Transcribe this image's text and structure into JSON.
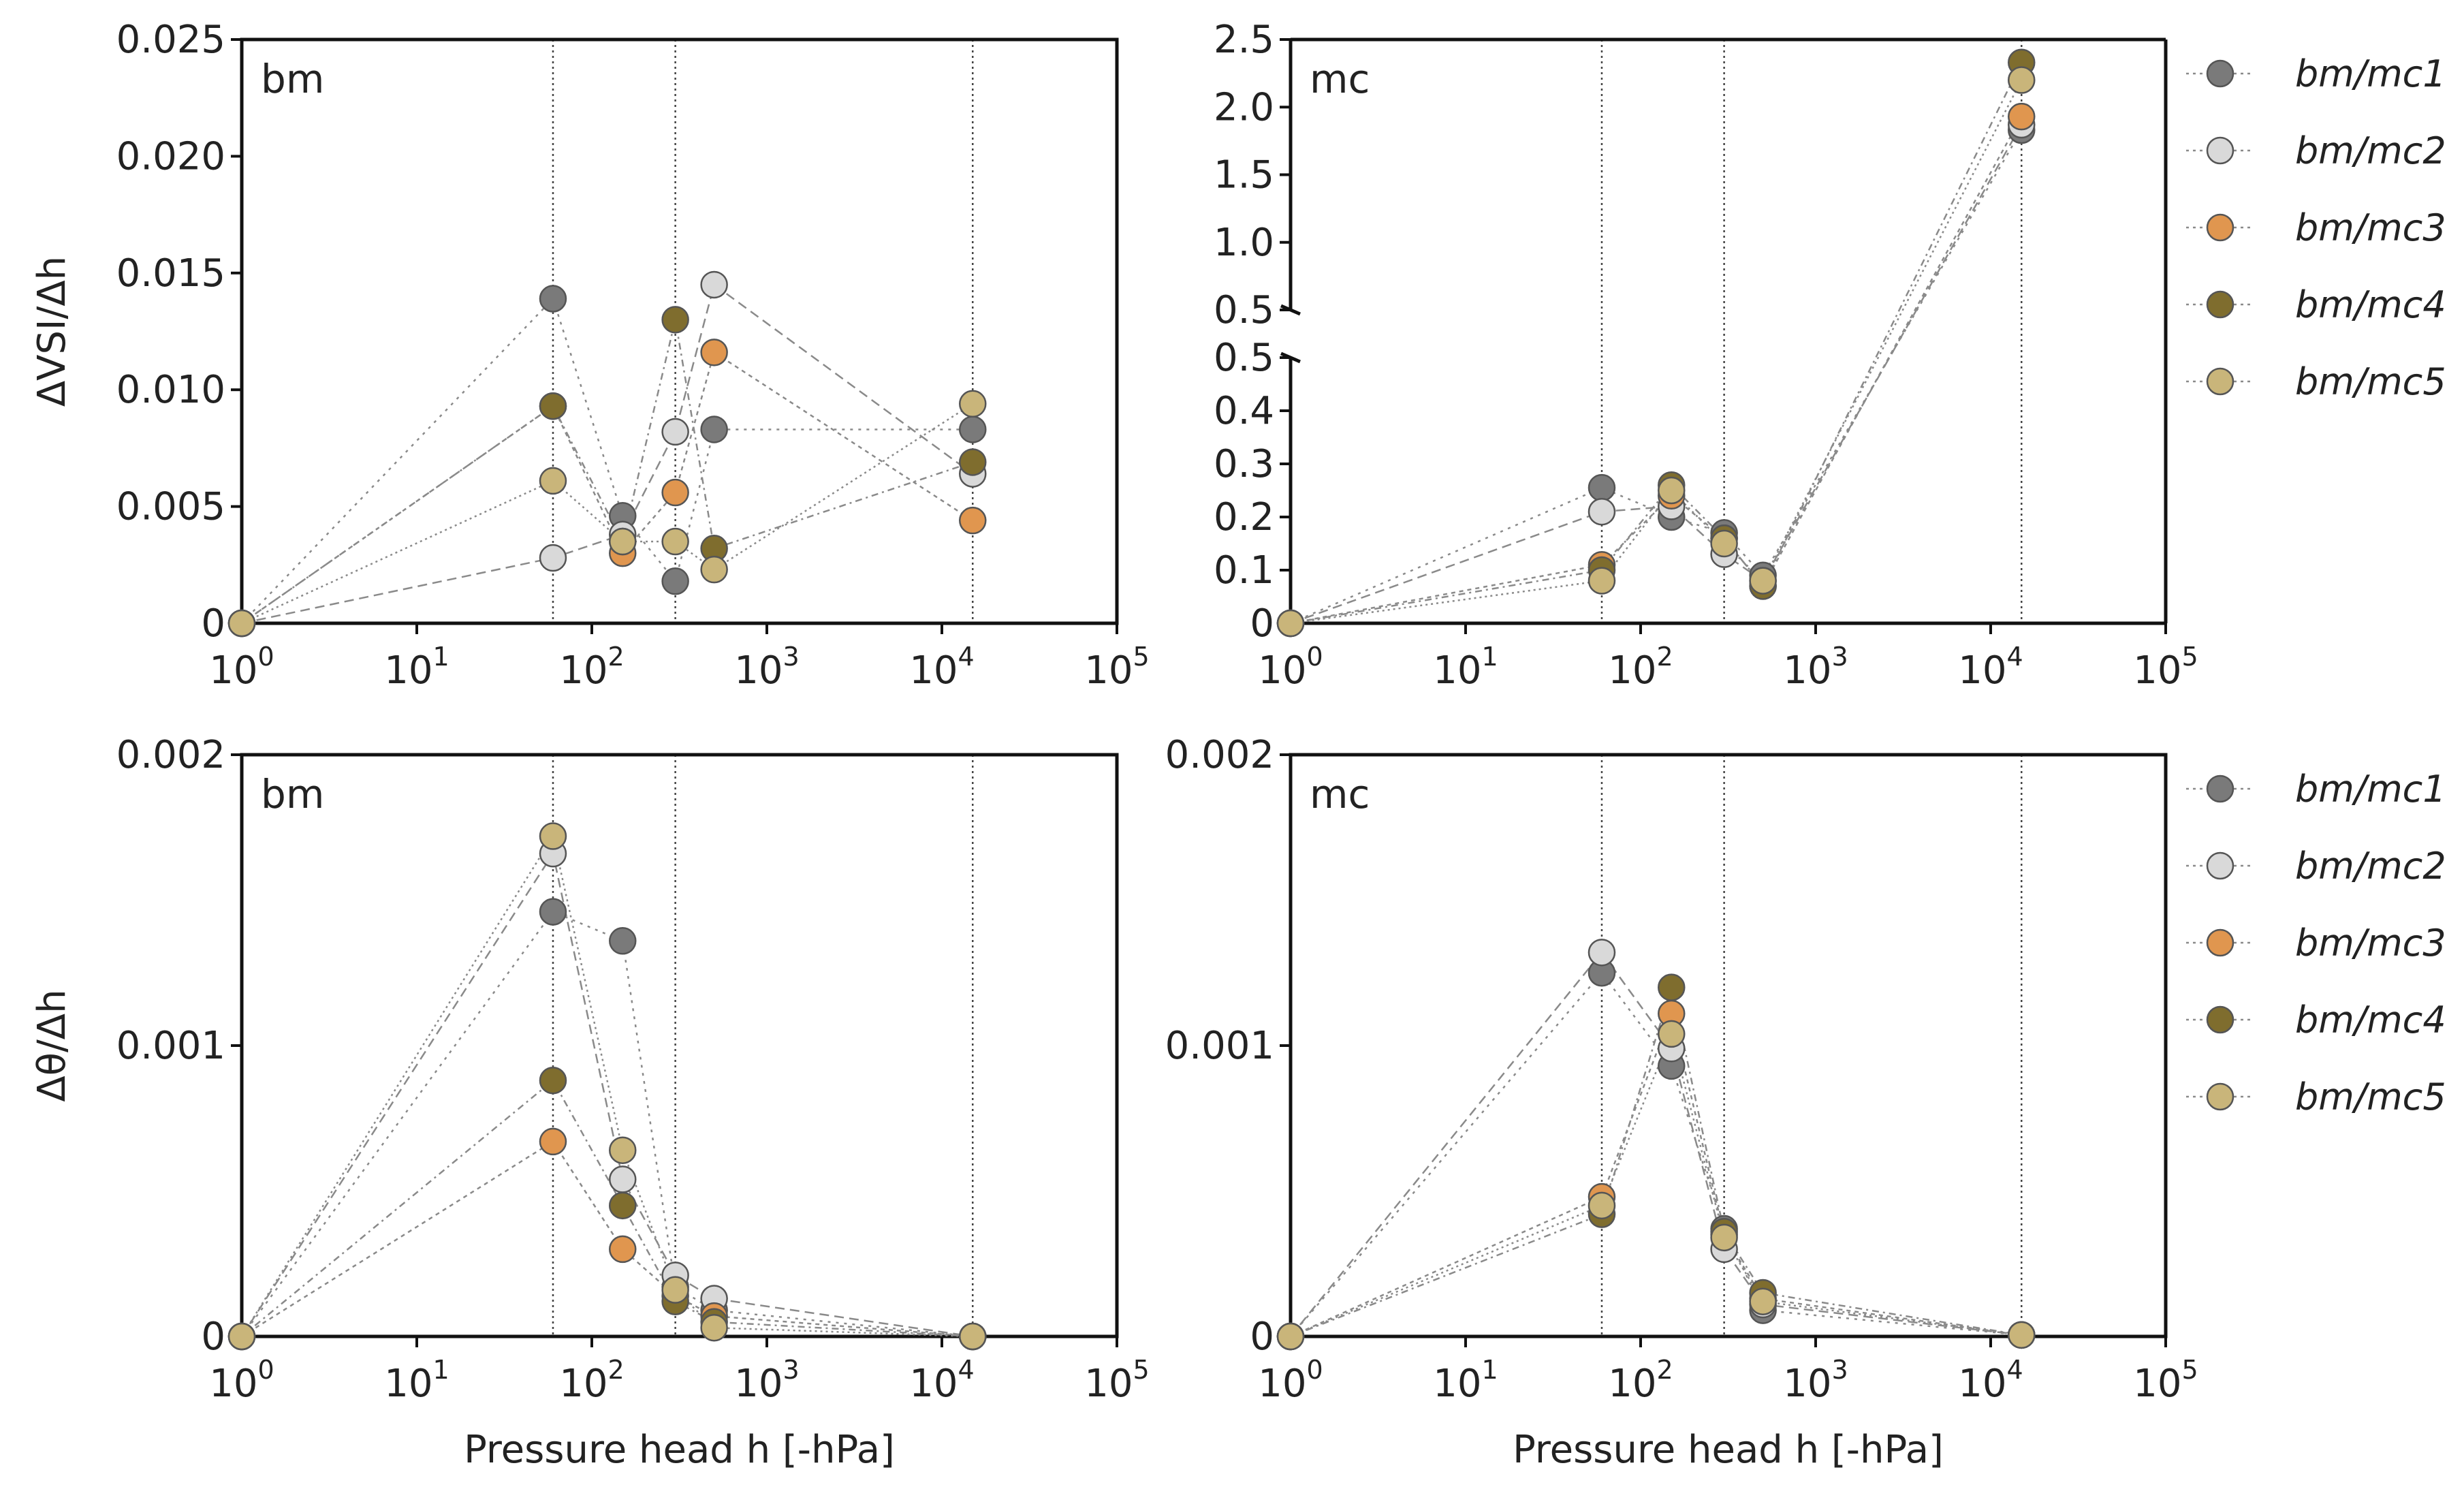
{
  "figure": {
    "xlabel": "Pressure head h [-hPa]",
    "ylabel_top": "ΔVSI/Δh",
    "ylabel_bottom": "Δθ/Δh",
    "legend_marker_semantic": "circle-marker-icon"
  },
  "colors": {
    "bm/mc1": "#7a7a7a",
    "bm/mc2": "#d9d9d9",
    "bm/mc3": "#e0964f",
    "bm/mc4": "#7f6d2e",
    "bm/mc5": "#c9b57a",
    "axis": "#111111",
    "vline": "#444444",
    "series_line": "#8a8a8a",
    "text": "#222222"
  },
  "chart_data": [
    {
      "type": "scatter",
      "panel": "bm",
      "ylabel": "ΔVSI/Δh",
      "xlabel": "",
      "xscale": "log",
      "xlim": [
        1,
        100000
      ],
      "xticks": [
        {
          "base": "10",
          "exp": "0"
        },
        {
          "base": "10",
          "exp": "1"
        },
        {
          "base": "10",
          "exp": "2"
        },
        {
          "base": "10",
          "exp": "3"
        },
        {
          "base": "10",
          "exp": "4"
        },
        {
          "base": "10",
          "exp": "5"
        }
      ],
      "ylim": [
        0,
        0.025
      ],
      "yticks": [
        {
          "v": 0,
          "label": "0"
        },
        {
          "v": 0.005,
          "label": "0.005"
        },
        {
          "v": 0.01,
          "label": "0.010"
        },
        {
          "v": 0.015,
          "label": "0.015"
        },
        {
          "v": 0.02,
          "label": "0.020"
        },
        {
          "v": 0.025,
          "label": "0.025"
        }
      ],
      "vlines": [
        60,
        300,
        15000
      ],
      "series": [
        {
          "name": "bm/mc1",
          "x": [
            1,
            60,
            150,
            300,
            500,
            15000
          ],
          "y": [
            0,
            0.0139,
            0.0046,
            0.0018,
            0.0083,
            0.0083
          ]
        },
        {
          "name": "bm/mc2",
          "x": [
            1,
            60,
            150,
            300,
            500,
            15000
          ],
          "y": [
            0,
            0.0028,
            0.0038,
            0.0082,
            0.0145,
            0.0064
          ]
        },
        {
          "name": "bm/mc3",
          "x": [
            1,
            60,
            150,
            300,
            500,
            15000
          ],
          "y": [
            0,
            0.0093,
            0.003,
            0.0056,
            0.0116,
            0.0044
          ]
        },
        {
          "name": "bm/mc4",
          "x": [
            1,
            60,
            150,
            300,
            500,
            15000
          ],
          "y": [
            0,
            0.0093,
            0.0035,
            0.013,
            0.0032,
            0.0069
          ]
        },
        {
          "name": "bm/mc5",
          "x": [
            1,
            60,
            150,
            300,
            500,
            15000
          ],
          "y": [
            0,
            0.0061,
            0.0035,
            0.0035,
            0.0023,
            0.0094
          ]
        }
      ]
    },
    {
      "type": "scatter",
      "panel": "mc",
      "ylabel": "",
      "xlabel": "",
      "xscale": "log",
      "xlim": [
        1,
        100000
      ],
      "xticks": [
        {
          "base": "10",
          "exp": "0"
        },
        {
          "base": "10",
          "exp": "1"
        },
        {
          "base": "10",
          "exp": "2"
        },
        {
          "base": "10",
          "exp": "3"
        },
        {
          "base": "10",
          "exp": "4"
        },
        {
          "base": "10",
          "exp": "5"
        }
      ],
      "broken_y": true,
      "ylim_lower": [
        0,
        0.5
      ],
      "ylim_upper": [
        0.5,
        2.5
      ],
      "yticks_lower": [
        {
          "v": 0,
          "label": "0"
        },
        {
          "v": 0.1,
          "label": "0.1"
        },
        {
          "v": 0.2,
          "label": "0.2"
        },
        {
          "v": 0.3,
          "label": "0.3"
        },
        {
          "v": 0.4,
          "label": "0.4"
        },
        {
          "v": 0.5,
          "label": "0.5"
        }
      ],
      "yticks_upper": [
        {
          "v": 0.5,
          "label": "0.5"
        },
        {
          "v": 1.0,
          "label": "1.0"
        },
        {
          "v": 1.5,
          "label": "1.5"
        },
        {
          "v": 2.0,
          "label": "2.0"
        },
        {
          "v": 2.5,
          "label": "2.5"
        }
      ],
      "vlines": [
        60,
        300,
        15000
      ],
      "series": [
        {
          "name": "bm/mc1",
          "x": [
            1,
            60,
            150,
            300,
            500,
            15000
          ],
          "y": [
            0,
            0.255,
            0.2,
            0.17,
            0.09,
            1.83
          ]
        },
        {
          "name": "bm/mc2",
          "x": [
            1,
            60,
            150,
            300,
            500,
            15000
          ],
          "y": [
            0,
            0.21,
            0.22,
            0.13,
            0.08,
            1.87
          ]
        },
        {
          "name": "bm/mc3",
          "x": [
            1,
            60,
            150,
            300,
            500,
            15000
          ],
          "y": [
            0,
            0.11,
            0.24,
            0.16,
            0.07,
            1.93
          ]
        },
        {
          "name": "bm/mc4",
          "x": [
            1,
            60,
            150,
            300,
            500,
            15000
          ],
          "y": [
            0,
            0.1,
            0.26,
            0.16,
            0.07,
            2.33
          ]
        },
        {
          "name": "bm/mc5",
          "x": [
            1,
            60,
            150,
            300,
            500,
            15000
          ],
          "y": [
            0,
            0.08,
            0.25,
            0.15,
            0.08,
            2.2
          ]
        }
      ]
    },
    {
      "type": "scatter",
      "panel": "bm",
      "ylabel": "Δθ/Δh",
      "xlabel": "Pressure head h [-hPa]",
      "xscale": "log",
      "xlim": [
        1,
        100000
      ],
      "xticks": [
        {
          "base": "10",
          "exp": "0"
        },
        {
          "base": "10",
          "exp": "1"
        },
        {
          "base": "10",
          "exp": "2"
        },
        {
          "base": "10",
          "exp": "3"
        },
        {
          "base": "10",
          "exp": "4"
        },
        {
          "base": "10",
          "exp": "5"
        }
      ],
      "ylim": [
        0,
        0.002
      ],
      "yticks": [
        {
          "v": 0,
          "label": "0"
        },
        {
          "v": 0.001,
          "label": "0.001"
        },
        {
          "v": 0.002,
          "label": "0.002"
        }
      ],
      "vlines": [
        60,
        300,
        15000
      ],
      "series": [
        {
          "name": "bm/mc1",
          "x": [
            1,
            60,
            150,
            300,
            500,
            15000
          ],
          "y": [
            0,
            0.00146,
            0.00136,
            0.00017,
            9e-05,
            0
          ]
        },
        {
          "name": "bm/mc2",
          "x": [
            1,
            60,
            150,
            300,
            500,
            15000
          ],
          "y": [
            0,
            0.00166,
            0.00054,
            0.00021,
            0.00013,
            0
          ]
        },
        {
          "name": "bm/mc3",
          "x": [
            1,
            60,
            150,
            300,
            500,
            15000
          ],
          "y": [
            0,
            0.00067,
            0.0003,
            0.00014,
            7e-05,
            0
          ]
        },
        {
          "name": "bm/mc4",
          "x": [
            1,
            60,
            150,
            300,
            500,
            15000
          ],
          "y": [
            0,
            0.00088,
            0.00045,
            0.00012,
            5e-05,
            0
          ]
        },
        {
          "name": "bm/mc5",
          "x": [
            1,
            60,
            150,
            300,
            500,
            15000
          ],
          "y": [
            0,
            0.00172,
            0.00064,
            0.00016,
            3e-05,
            0
          ]
        }
      ]
    },
    {
      "type": "scatter",
      "panel": "mc",
      "ylabel": "",
      "xlabel": "Pressure head h [-hPa]",
      "xscale": "log",
      "xlim": [
        1,
        100000
      ],
      "xticks": [
        {
          "base": "10",
          "exp": "0"
        },
        {
          "base": "10",
          "exp": "1"
        },
        {
          "base": "10",
          "exp": "2"
        },
        {
          "base": "10",
          "exp": "3"
        },
        {
          "base": "10",
          "exp": "4"
        },
        {
          "base": "10",
          "exp": "5"
        }
      ],
      "ylim": [
        0,
        0.002
      ],
      "yticks": [
        {
          "v": 0,
          "label": "0"
        },
        {
          "v": 0.001,
          "label": "0.001"
        },
        {
          "v": 0.002,
          "label": "0.002"
        }
      ],
      "vlines": [
        60,
        300,
        15000
      ],
      "series": [
        {
          "name": "bm/mc1",
          "x": [
            1,
            60,
            150,
            300,
            500,
            15000
          ],
          "y": [
            0,
            0.00125,
            0.00093,
            0.00037,
            9e-05,
            5e-06
          ]
        },
        {
          "name": "bm/mc2",
          "x": [
            1,
            60,
            150,
            300,
            500,
            15000
          ],
          "y": [
            0,
            0.00132,
            0.00099,
            0.0003,
            0.00011,
            5e-06
          ]
        },
        {
          "name": "bm/mc3",
          "x": [
            1,
            60,
            150,
            300,
            500,
            15000
          ],
          "y": [
            0,
            0.00048,
            0.00111,
            0.00035,
            0.00013,
            5e-06
          ]
        },
        {
          "name": "bm/mc4",
          "x": [
            1,
            60,
            150,
            300,
            500,
            15000
          ],
          "y": [
            0,
            0.00042,
            0.0012,
            0.00036,
            0.00015,
            5e-06
          ]
        },
        {
          "name": "bm/mc5",
          "x": [
            1,
            60,
            150,
            300,
            500,
            15000
          ],
          "y": [
            0,
            0.00045,
            0.00104,
            0.00034,
            0.00012,
            5e-06
          ]
        }
      ]
    }
  ],
  "legends": [
    {
      "entries": [
        "bm/mc1",
        "bm/mc2",
        "bm/mc3",
        "bm/mc4",
        "bm/mc5"
      ]
    },
    {
      "entries": [
        "bm/mc1",
        "bm/mc2",
        "bm/mc3",
        "bm/mc4",
        "bm/mc5"
      ]
    }
  ]
}
